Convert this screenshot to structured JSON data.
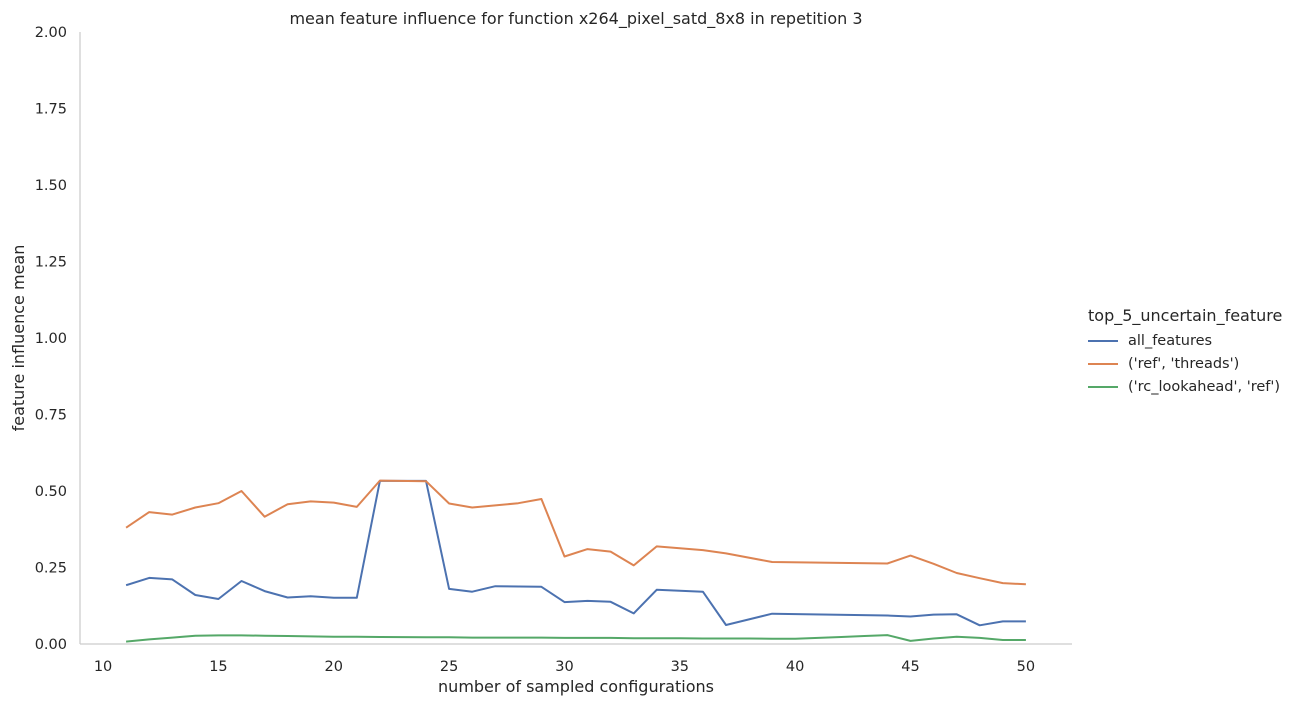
{
  "chart_data": {
    "type": "line",
    "title": "mean feature influence for function x264_pixel_satd_8x8 in repetition 3",
    "xlabel": "number of sampled configurations",
    "ylabel": "feature influence mean",
    "xlim": [
      9.0,
      52.0
    ],
    "ylim": [
      0.0,
      2.0
    ],
    "xticks": [
      10,
      15,
      20,
      25,
      30,
      35,
      40,
      45,
      50
    ],
    "yticks": [
      "0.00",
      "0.25",
      "0.50",
      "0.75",
      "1.00",
      "1.25",
      "1.50",
      "1.75",
      "2.00"
    ],
    "grid": false,
    "legend_title": "top_5_uncertain_feature",
    "legend_position": "right",
    "series": [
      {
        "name": "all_features",
        "color": "#4c72b0",
        "x": [
          11,
          12,
          13,
          14,
          15,
          16,
          17,
          18,
          19,
          20,
          21,
          22,
          24,
          25,
          26,
          27,
          29,
          30,
          31,
          32,
          33,
          34,
          36,
          37,
          39,
          44,
          45,
          46,
          47,
          48,
          49,
          50
        ],
        "y": [
          0.192,
          0.216,
          0.211,
          0.16,
          0.147,
          0.206,
          0.173,
          0.152,
          0.156,
          0.151,
          0.151,
          0.533,
          0.533,
          0.18,
          0.171,
          0.189,
          0.187,
          0.137,
          0.141,
          0.138,
          0.1,
          0.177,
          0.171,
          0.062,
          0.099,
          0.093,
          0.09,
          0.096,
          0.097,
          0.061,
          0.074,
          0.074
        ]
      },
      {
        "name": "('ref', 'threads')",
        "color": "#dd8452",
        "x": [
          11,
          12,
          13,
          14,
          15,
          16,
          17,
          18,
          19,
          20,
          21,
          22,
          24,
          25,
          26,
          27,
          28,
          29,
          30,
          31,
          32,
          33,
          34,
          36,
          37,
          39,
          44,
          45,
          46,
          47,
          48,
          49,
          50
        ],
        "y": [
          0.38,
          0.431,
          0.423,
          0.446,
          0.46,
          0.5,
          0.416,
          0.457,
          0.466,
          0.462,
          0.448,
          0.534,
          0.532,
          0.459,
          0.446,
          0.453,
          0.46,
          0.474,
          0.286,
          0.31,
          0.302,
          0.257,
          0.319,
          0.307,
          0.296,
          0.268,
          0.263,
          0.289,
          0.262,
          0.232,
          0.215,
          0.199,
          0.195
        ]
      },
      {
        "name": "('rc_lookahead', 'ref')",
        "color": "#55a868",
        "x": [
          11,
          12,
          13,
          14,
          15,
          16,
          17,
          18,
          19,
          20,
          21,
          22,
          24,
          25,
          26,
          27,
          28,
          29,
          30,
          31,
          32,
          33,
          34,
          35,
          36,
          37,
          38,
          39,
          40,
          41,
          42,
          43,
          44,
          45,
          46,
          47,
          48,
          49,
          50
        ],
        "y": [
          0.008,
          0.015,
          0.021,
          0.027,
          0.028,
          0.028,
          0.027,
          0.026,
          0.025,
          0.024,
          0.024,
          0.023,
          0.022,
          0.022,
          0.021,
          0.021,
          0.021,
          0.021,
          0.02,
          0.02,
          0.02,
          0.019,
          0.019,
          0.019,
          0.018,
          0.018,
          0.018,
          0.017,
          0.017,
          0.02,
          0.023,
          0.026,
          0.029,
          0.01,
          0.018,
          0.024,
          0.02,
          0.013,
          0.013
        ]
      }
    ]
  }
}
